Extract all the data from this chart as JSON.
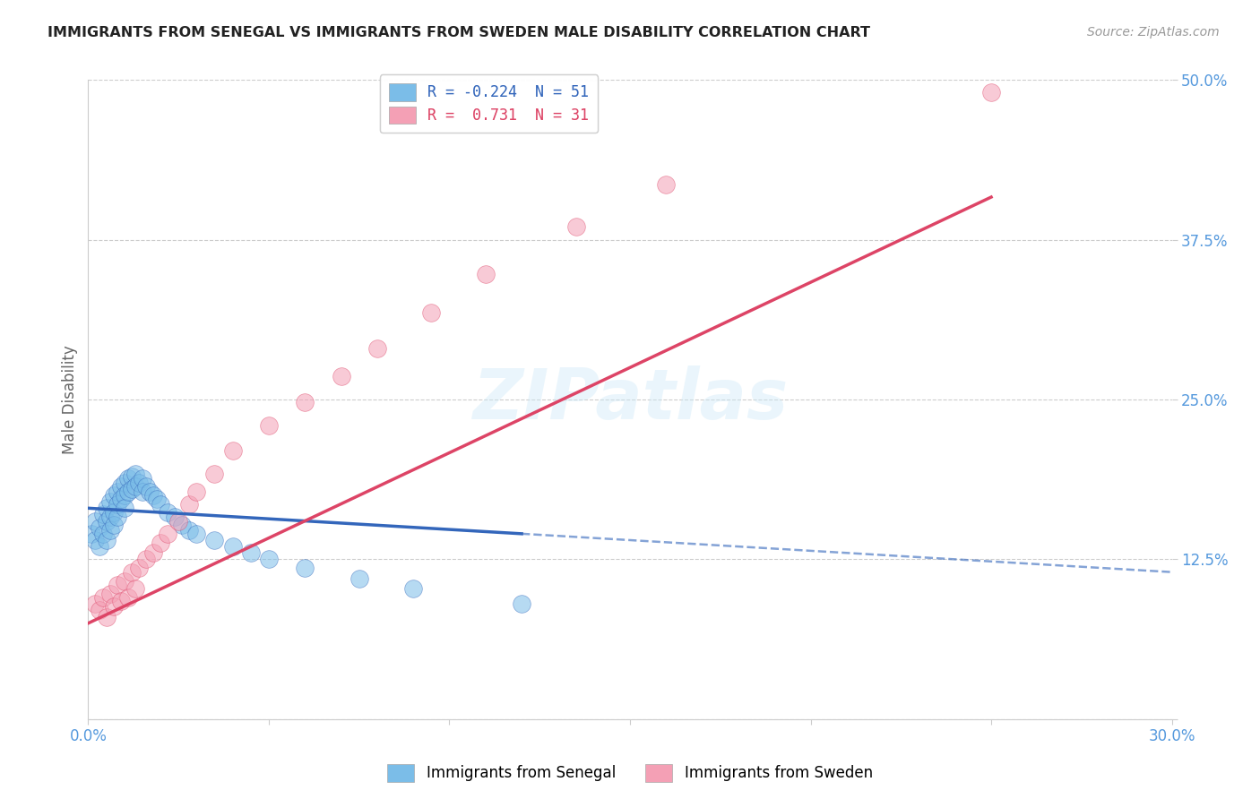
{
  "title": "IMMIGRANTS FROM SENEGAL VS IMMIGRANTS FROM SWEDEN MALE DISABILITY CORRELATION CHART",
  "source": "Source: ZipAtlas.com",
  "ylabel": "Male Disability",
  "legend_label1": "Immigrants from Senegal",
  "legend_label2": "Immigrants from Sweden",
  "R1": -0.224,
  "N1": 51,
  "R2": 0.731,
  "N2": 31,
  "color1": "#7bbde8",
  "color2": "#f4a0b5",
  "trendline1_color": "#3366bb",
  "trendline2_color": "#dd4466",
  "background_color": "#ffffff",
  "xmin": 0.0,
  "xmax": 0.3,
  "ymin": 0.0,
  "ymax": 0.5,
  "xticks": [
    0.0,
    0.05,
    0.1,
    0.15,
    0.2,
    0.25,
    0.3
  ],
  "yticks": [
    0.0,
    0.125,
    0.25,
    0.375,
    0.5
  ],
  "senegal_x": [
    0.001,
    0.002,
    0.002,
    0.003,
    0.003,
    0.004,
    0.004,
    0.005,
    0.005,
    0.005,
    0.006,
    0.006,
    0.006,
    0.007,
    0.007,
    0.007,
    0.008,
    0.008,
    0.008,
    0.009,
    0.009,
    0.01,
    0.01,
    0.01,
    0.011,
    0.011,
    0.012,
    0.012,
    0.013,
    0.013,
    0.014,
    0.015,
    0.015,
    0.016,
    0.017,
    0.018,
    0.019,
    0.02,
    0.022,
    0.024,
    0.026,
    0.028,
    0.03,
    0.035,
    0.04,
    0.045,
    0.05,
    0.06,
    0.075,
    0.09,
    0.12
  ],
  "senegal_y": [
    0.145,
    0.14,
    0.155,
    0.135,
    0.15,
    0.16,
    0.145,
    0.165,
    0.155,
    0.14,
    0.17,
    0.158,
    0.148,
    0.175,
    0.162,
    0.152,
    0.178,
    0.168,
    0.158,
    0.182,
    0.172,
    0.185,
    0.175,
    0.165,
    0.188,
    0.178,
    0.19,
    0.18,
    0.192,
    0.182,
    0.185,
    0.188,
    0.178,
    0.182,
    0.178,
    0.175,
    0.172,
    0.168,
    0.162,
    0.158,
    0.152,
    0.148,
    0.145,
    0.14,
    0.135,
    0.13,
    0.125,
    0.118,
    0.11,
    0.102,
    0.09
  ],
  "sweden_x": [
    0.002,
    0.003,
    0.004,
    0.005,
    0.006,
    0.007,
    0.008,
    0.009,
    0.01,
    0.011,
    0.012,
    0.013,
    0.014,
    0.016,
    0.018,
    0.02,
    0.022,
    0.025,
    0.028,
    0.03,
    0.035,
    0.04,
    0.05,
    0.06,
    0.07,
    0.08,
    0.095,
    0.11,
    0.135,
    0.16,
    0.25
  ],
  "sweden_y": [
    0.09,
    0.085,
    0.095,
    0.08,
    0.098,
    0.088,
    0.105,
    0.092,
    0.108,
    0.095,
    0.115,
    0.102,
    0.118,
    0.125,
    0.13,
    0.138,
    0.145,
    0.155,
    0.168,
    0.178,
    0.192,
    0.21,
    0.23,
    0.248,
    0.268,
    0.29,
    0.318,
    0.348,
    0.385,
    0.418,
    0.49
  ],
  "trendline1_x0": 0.0,
  "trendline1_x1": 0.3,
  "trendline1_y0": 0.165,
  "trendline1_y1": 0.115,
  "trendline2_x0": 0.0,
  "trendline2_x1": 0.3,
  "trendline2_y0": 0.075,
  "trendline2_y1": 0.475
}
